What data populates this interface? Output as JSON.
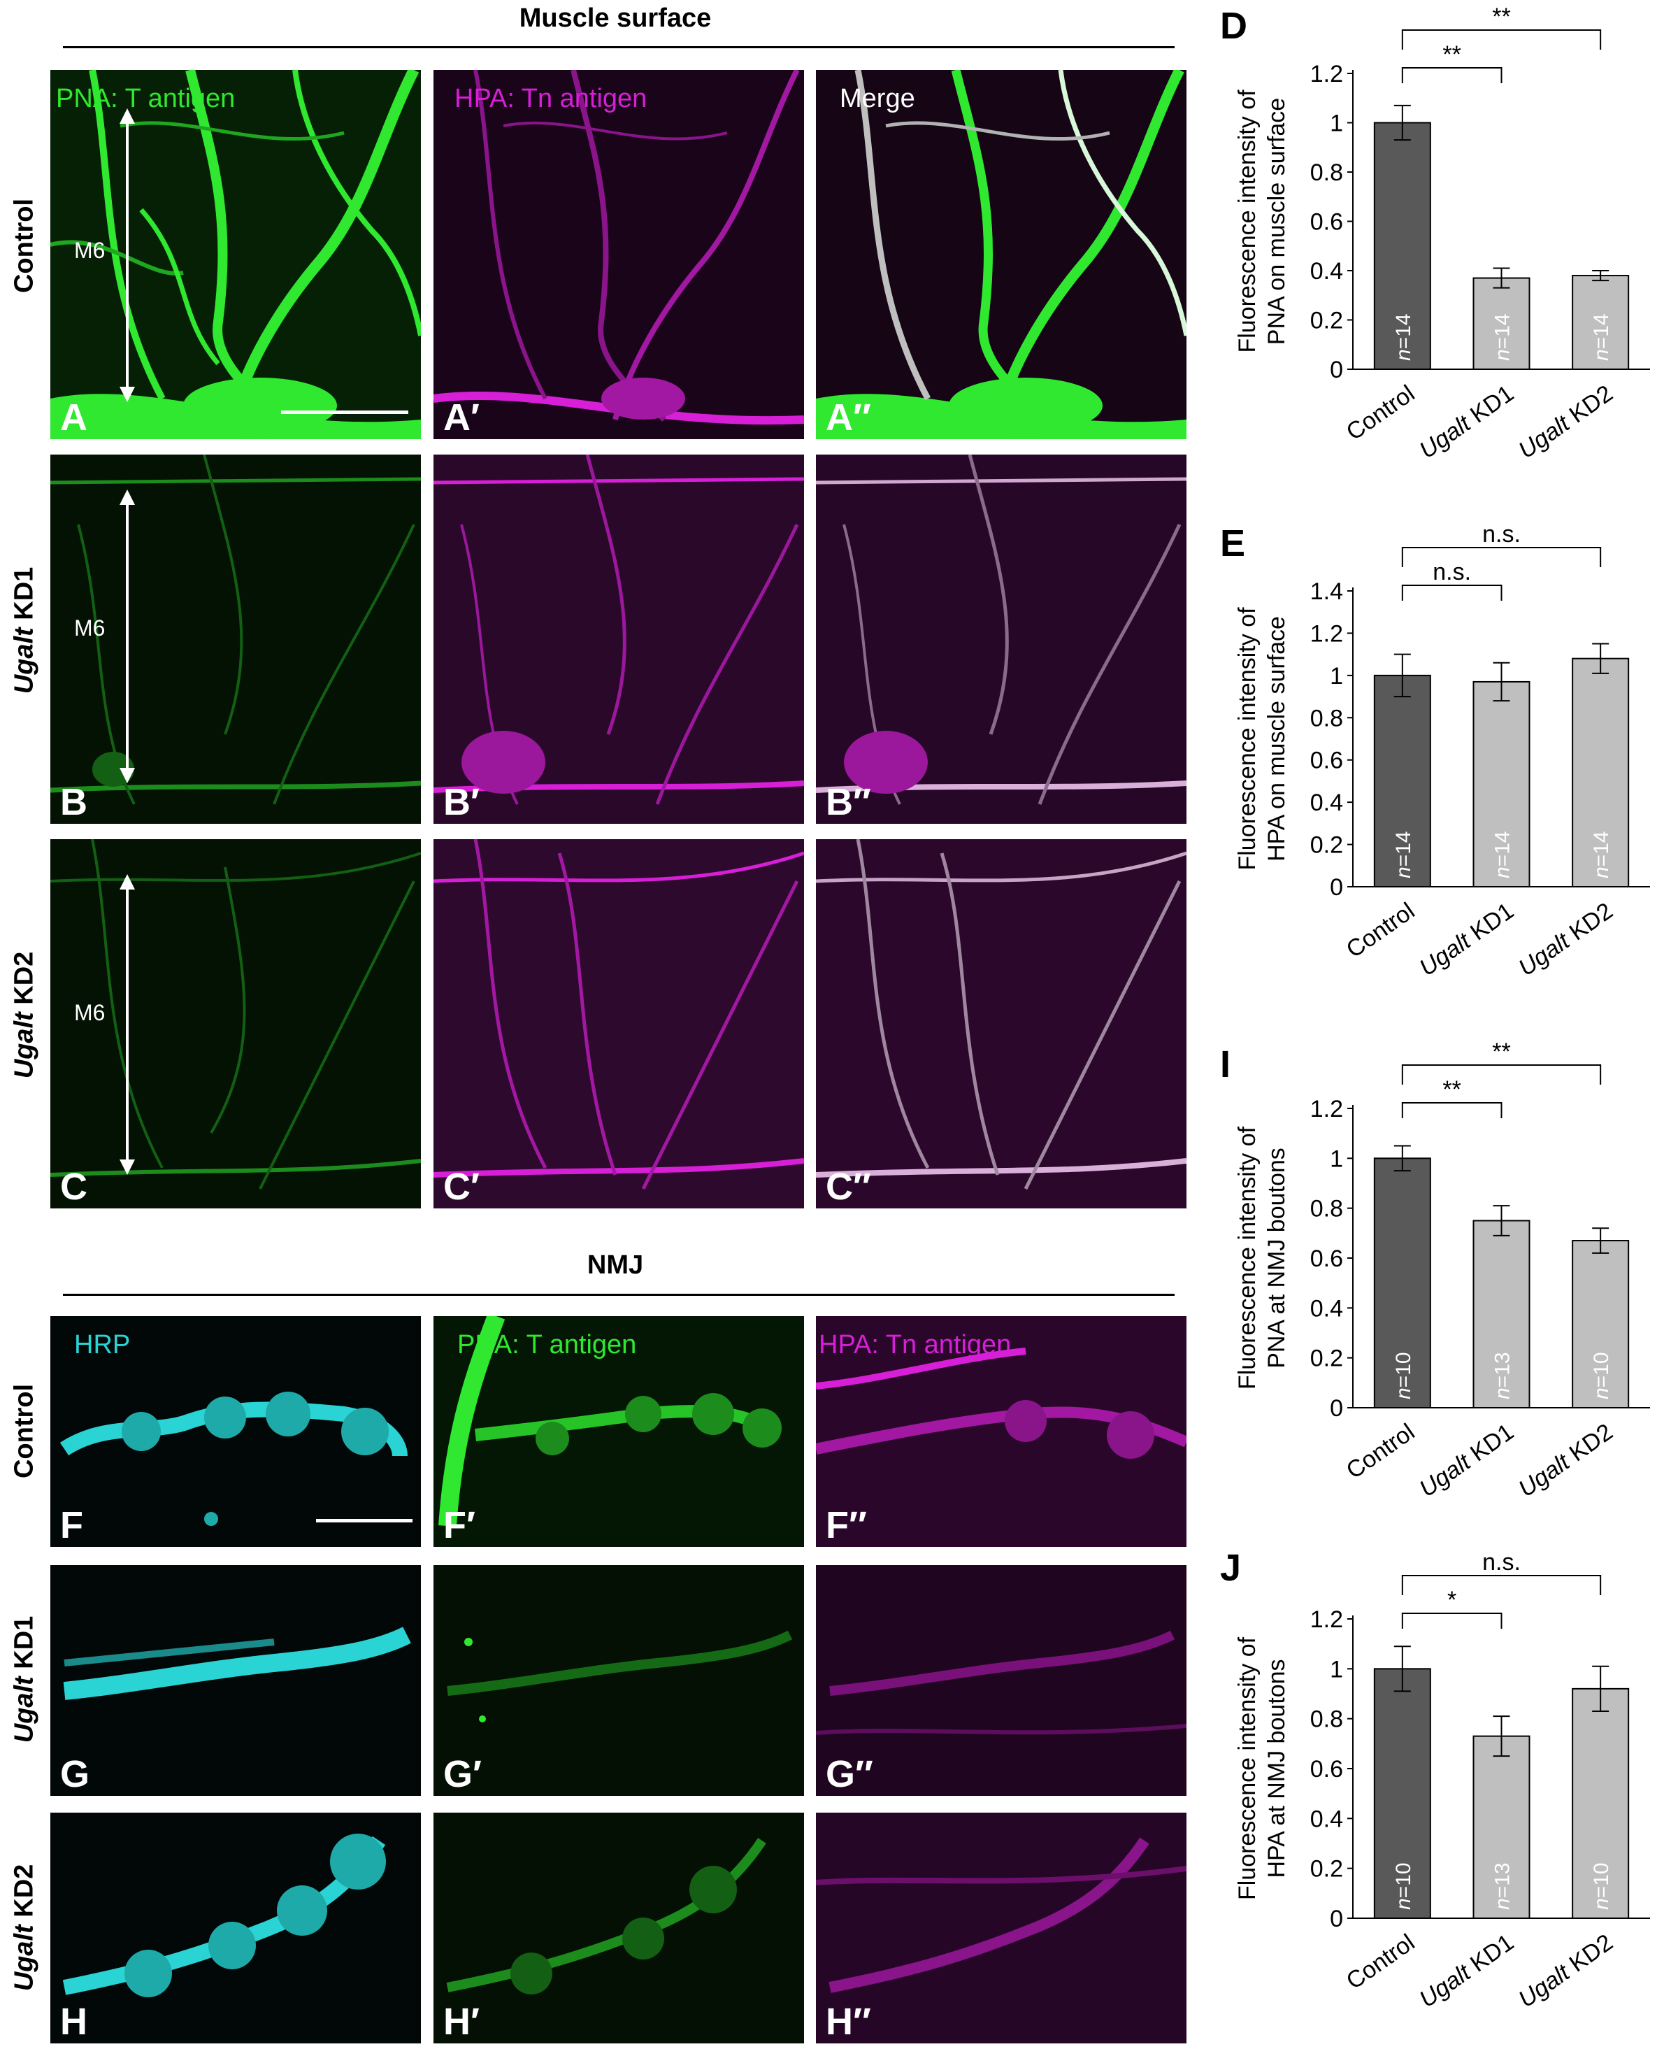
{
  "sections": {
    "muscle_surface_title": "Muscle surface",
    "nmj_title": "NMJ"
  },
  "row_labels": {
    "control": "Control",
    "ugalt": "Ugalt",
    "kd1": " KD1",
    "kd2": " KD2"
  },
  "panel_titles": {
    "pna": "PNA: T antigen",
    "hpa": "HPA: Tn antigen",
    "merge": "Merge",
    "hrp": "HRP"
  },
  "muscle_label": "M6",
  "panel_labels": {
    "A": "A",
    "A1": "A′",
    "A2": "A″",
    "B": "B",
    "B1": "B′",
    "B2": "B″",
    "C": "C",
    "C1": "C′",
    "C2": "C″",
    "F": "F",
    "F1": "F′",
    "F2": "F″",
    "G": "G",
    "G1": "G′",
    "G2": "G″",
    "H": "H",
    "H1": "H′",
    "H2": "H″"
  },
  "colors": {
    "green": "#2fe82f",
    "magenta": "#d61fd6",
    "cyan": "#2ad4d4",
    "bar_control": "#595959",
    "bar_kd": "#bfbfbf"
  },
  "chart_data": [
    {
      "panel_letter": "D",
      "type": "bar",
      "ylabel": [
        "Fluorescence intensity of",
        "PNA on muscle surface"
      ],
      "categories": [
        "Control",
        "Ugalt KD1",
        "Ugalt KD2"
      ],
      "values": [
        1.0,
        0.37,
        0.38
      ],
      "errors": [
        0.07,
        0.04,
        0.02
      ],
      "n_labels": [
        "n=14",
        "n=14",
        "n=14"
      ],
      "ylim": [
        0,
        1.2
      ],
      "yticks": [
        "0",
        "0.2",
        "0.4",
        "0.6",
        "0.8",
        "1",
        "1.2"
      ],
      "sig_short": "**",
      "sig_long": "**"
    },
    {
      "panel_letter": "E",
      "type": "bar",
      "ylabel": [
        "Fluorescence intensity of",
        "HPA on muscle surface"
      ],
      "categories": [
        "Control",
        "Ugalt KD1",
        "Ugalt KD2"
      ],
      "values": [
        1.0,
        0.97,
        1.08
      ],
      "errors": [
        0.1,
        0.09,
        0.07
      ],
      "n_labels": [
        "n=14",
        "n=14",
        "n=14"
      ],
      "ylim": [
        0,
        1.4
      ],
      "yticks": [
        "0",
        "0.2",
        "0.4",
        "0.6",
        "0.8",
        "1",
        "1.2",
        "1.4"
      ],
      "sig_short": "n.s.",
      "sig_long": "n.s."
    },
    {
      "panel_letter": "I",
      "type": "bar",
      "ylabel": [
        "Fluorescence intensity of",
        "PNA at NMJ boutons"
      ],
      "categories": [
        "Control",
        "Ugalt KD1",
        "Ugalt KD2"
      ],
      "values": [
        1.0,
        0.75,
        0.67
      ],
      "errors": [
        0.05,
        0.06,
        0.05
      ],
      "n_labels": [
        "n=10",
        "n=13",
        "n=10"
      ],
      "ylim": [
        0,
        1.2
      ],
      "yticks": [
        "0",
        "0.2",
        "0.4",
        "0.6",
        "0.8",
        "1",
        "1.2"
      ],
      "sig_short": "**",
      "sig_long": "**"
    },
    {
      "panel_letter": "J",
      "type": "bar",
      "ylabel": [
        "Fluorescence intensity of",
        "HPA at NMJ boutons"
      ],
      "categories": [
        "Control",
        "Ugalt KD1",
        "Ugalt KD2"
      ],
      "values": [
        1.0,
        0.73,
        0.92
      ],
      "errors": [
        0.09,
        0.08,
        0.09
      ],
      "n_labels": [
        "n=10",
        "n=13",
        "n=10"
      ],
      "ylim": [
        0,
        1.2
      ],
      "yticks": [
        "0",
        "0.2",
        "0.4",
        "0.6",
        "0.8",
        "1",
        "1.2"
      ],
      "sig_short": "*",
      "sig_long": "n.s."
    }
  ]
}
